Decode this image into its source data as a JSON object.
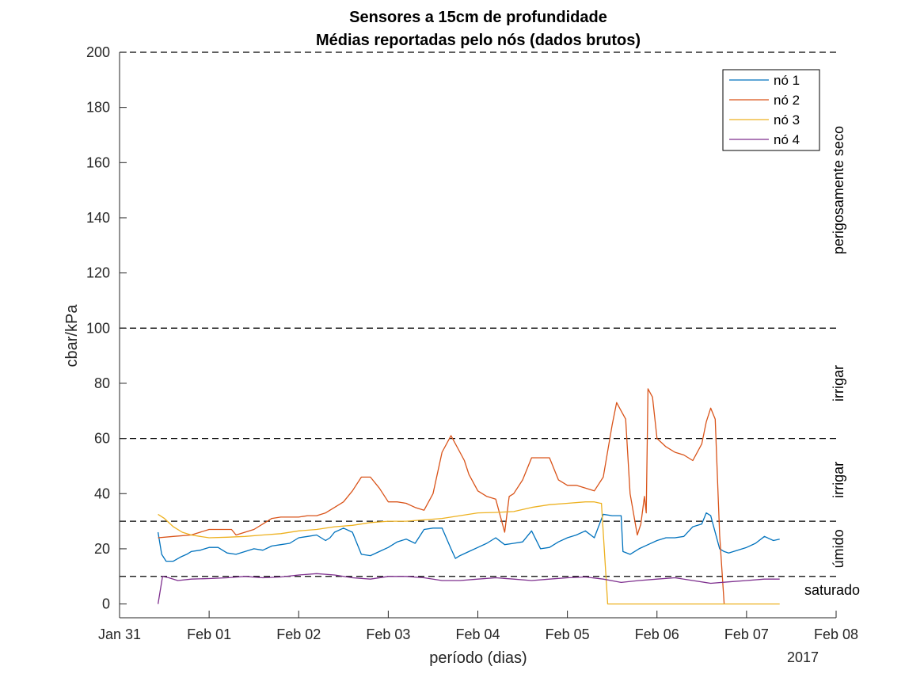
{
  "chart_data": {
    "type": "line",
    "title": "Sensores a 15cm de profundidade",
    "subtitle": "Médias reportadas pelo nós (dados brutos)",
    "xlabel": "período (dias)",
    "ylabel": "cbar/kPa",
    "x_year_label": "2017",
    "xlim": [
      0,
      8
    ],
    "ylim": [
      -5,
      200
    ],
    "x_ticks": [
      {
        "value": 0,
        "label": "Jan 31"
      },
      {
        "value": 1,
        "label": "Feb 01"
      },
      {
        "value": 2,
        "label": "Feb 02"
      },
      {
        "value": 3,
        "label": "Feb 03"
      },
      {
        "value": 4,
        "label": "Feb 04"
      },
      {
        "value": 5,
        "label": "Feb 05"
      },
      {
        "value": 6,
        "label": "Feb 06"
      },
      {
        "value": 7,
        "label": "Feb 07"
      },
      {
        "value": 8,
        "label": "Feb 08"
      }
    ],
    "y_ticks": [
      0,
      20,
      40,
      60,
      80,
      100,
      120,
      140,
      160,
      180,
      200
    ],
    "reference_lines": [
      10,
      30,
      60,
      100,
      200
    ],
    "zone_labels": [
      {
        "text": "perigosamente seco",
        "y": 150,
        "orientation": "vertical"
      },
      {
        "text": "irrigar",
        "y": 80,
        "orientation": "vertical"
      },
      {
        "text": "irrigar",
        "y": 45,
        "orientation": "vertical"
      },
      {
        "text": "úmido",
        "y": 20,
        "orientation": "vertical"
      },
      {
        "text": "saturado",
        "y": 5,
        "orientation": "horizontal"
      }
    ],
    "legend_position": "top-right",
    "series": [
      {
        "name": "nó 1",
        "color": "#0072BD",
        "x": [
          0.43,
          0.47,
          0.52,
          0.6,
          0.68,
          0.75,
          0.8,
          0.9,
          1.0,
          1.1,
          1.2,
          1.3,
          1.4,
          1.5,
          1.6,
          1.7,
          1.8,
          1.9,
          2.0,
          2.1,
          2.2,
          2.3,
          2.35,
          2.4,
          2.5,
          2.6,
          2.7,
          2.8,
          2.9,
          3.0,
          3.1,
          3.2,
          3.3,
          3.4,
          3.5,
          3.6,
          3.7,
          3.75,
          3.8,
          3.9,
          4.0,
          4.1,
          4.2,
          4.3,
          4.4,
          4.5,
          4.6,
          4.7,
          4.8,
          4.9,
          5.0,
          5.1,
          5.2,
          5.3,
          5.4,
          5.5,
          5.6,
          5.62,
          5.7,
          5.8,
          5.9,
          6.0,
          6.1,
          6.2,
          6.3,
          6.4,
          6.5,
          6.55,
          6.6,
          6.7,
          6.75,
          6.8,
          6.9,
          7.0,
          7.1,
          7.2,
          7.3,
          7.37
        ],
        "y": [
          26,
          18,
          15.5,
          15.5,
          17,
          18,
          19,
          19.5,
          20.5,
          20.5,
          18.5,
          18,
          19,
          20,
          19.5,
          21,
          21.5,
          22,
          24,
          24.5,
          25,
          23,
          24,
          26,
          27.5,
          26,
          18,
          17.5,
          19,
          20.5,
          22.5,
          23.5,
          22,
          27,
          27.5,
          27.5,
          20,
          16.5,
          17.5,
          19,
          20.5,
          22,
          24,
          21.5,
          22,
          22.5,
          26.5,
          20,
          20.5,
          22.5,
          24,
          25,
          26.5,
          24,
          32.5,
          32,
          32,
          19,
          18,
          20,
          21.5,
          23,
          24,
          24,
          24.5,
          28,
          29,
          33,
          32,
          20,
          19,
          18.5,
          19.5,
          20.5,
          22,
          24.5,
          23,
          23.5
        ]
      },
      {
        "name": "nó 2",
        "color": "#D95319",
        "x": [
          0.43,
          0.6,
          0.8,
          1.0,
          1.15,
          1.25,
          1.3,
          1.4,
          1.5,
          1.6,
          1.7,
          1.8,
          1.9,
          2.0,
          2.1,
          2.2,
          2.3,
          2.4,
          2.5,
          2.6,
          2.7,
          2.8,
          2.9,
          3.0,
          3.1,
          3.2,
          3.3,
          3.4,
          3.5,
          3.6,
          3.7,
          3.8,
          3.85,
          3.9,
          4.0,
          4.1,
          4.2,
          4.3,
          4.35,
          4.4,
          4.5,
          4.6,
          4.7,
          4.8,
          4.9,
          5.0,
          5.1,
          5.2,
          5.3,
          5.4,
          5.5,
          5.55,
          5.6,
          5.65,
          5.7,
          5.78,
          5.82,
          5.86,
          5.88,
          5.9,
          5.95,
          6.0,
          6.1,
          6.2,
          6.3,
          6.4,
          6.5,
          6.55,
          6.6,
          6.65,
          6.7,
          6.75
        ],
        "y": [
          24,
          24.5,
          25,
          27,
          27,
          27,
          25,
          26,
          27,
          29,
          31,
          31.5,
          31.5,
          31.5,
          32,
          32,
          33,
          35,
          37,
          41,
          46,
          46,
          42,
          37,
          37,
          36.5,
          35,
          34,
          40,
          55,
          61,
          55,
          52,
          47,
          41,
          39,
          38,
          26,
          39,
          40,
          45,
          53,
          53,
          53,
          45,
          43,
          43,
          42,
          41,
          46,
          65,
          73,
          70,
          67,
          40,
          25,
          29,
          39,
          33,
          78,
          75,
          60,
          57,
          55,
          54,
          52,
          58,
          66,
          71,
          67,
          25,
          0
        ]
      },
      {
        "name": "nó 3",
        "color": "#EDB120",
        "x": [
          0.43,
          0.5,
          0.6,
          0.7,
          0.8,
          0.9,
          1.0,
          1.2,
          1.4,
          1.6,
          1.8,
          2.0,
          2.2,
          2.4,
          2.6,
          2.8,
          3.0,
          3.2,
          3.4,
          3.6,
          3.8,
          4.0,
          4.2,
          4.4,
          4.6,
          4.8,
          5.0,
          5.2,
          5.3,
          5.37,
          5.38,
          5.45,
          5.6,
          5.8,
          6.0,
          6.2,
          6.4,
          6.6,
          6.8,
          7.0,
          7.2,
          7.37
        ],
        "y": [
          32.5,
          31,
          28,
          26,
          25,
          24.5,
          24,
          24.2,
          24.5,
          25,
          25.5,
          26.5,
          27,
          28,
          28.5,
          29.5,
          30,
          30,
          30.5,
          31,
          32,
          33,
          33.2,
          33.5,
          35,
          36,
          36.5,
          37,
          37,
          36.5,
          36.5,
          0,
          0,
          0,
          0,
          0,
          0,
          0,
          0,
          0,
          0,
          0
        ]
      },
      {
        "name": "nó 4",
        "color": "#7E2F8E",
        "x": [
          0.43,
          0.48,
          0.55,
          0.65,
          0.8,
          1.0,
          1.2,
          1.4,
          1.6,
          1.8,
          2.0,
          2.2,
          2.4,
          2.6,
          2.8,
          3.0,
          3.2,
          3.4,
          3.6,
          3.8,
          4.0,
          4.2,
          4.4,
          4.6,
          4.8,
          5.0,
          5.2,
          5.4,
          5.6,
          5.8,
          6.0,
          6.2,
          6.4,
          6.6,
          6.8,
          7.0,
          7.2,
          7.37
        ],
        "y": [
          0,
          10,
          9.5,
          8.5,
          9,
          9.2,
          9.5,
          10,
          9.5,
          9.8,
          10.5,
          11,
          10.5,
          9.5,
          9,
          10,
          10,
          9.5,
          8.5,
          8.5,
          9,
          9.5,
          9,
          8.5,
          9,
          9.5,
          9.8,
          9,
          7.8,
          8.5,
          9,
          9.5,
          8.5,
          7.5,
          8,
          8.5,
          9,
          9
        ]
      }
    ]
  }
}
